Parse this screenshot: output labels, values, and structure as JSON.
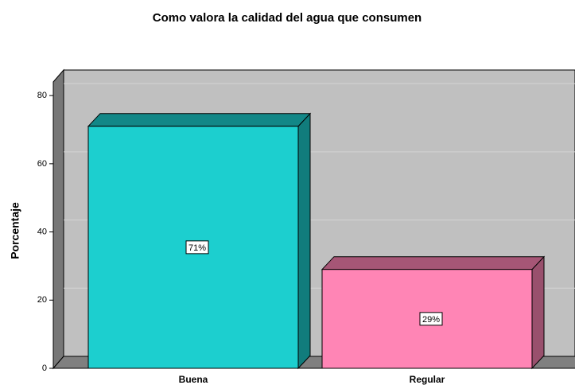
{
  "chart_data": {
    "type": "bar3d",
    "title": "Como valora la calidad del agua que consumen",
    "y_label": "Porcentaje",
    "categories": [
      "Buena",
      "Regular"
    ],
    "values": [
      71,
      29
    ],
    "value_labels": [
      "71%",
      "29%"
    ],
    "colors": [
      "#1ccfcf",
      "#ff85b5"
    ],
    "ylim": [
      0,
      84
    ],
    "yticks": [
      0,
      20,
      40,
      60,
      80
    ],
    "grid": true
  }
}
